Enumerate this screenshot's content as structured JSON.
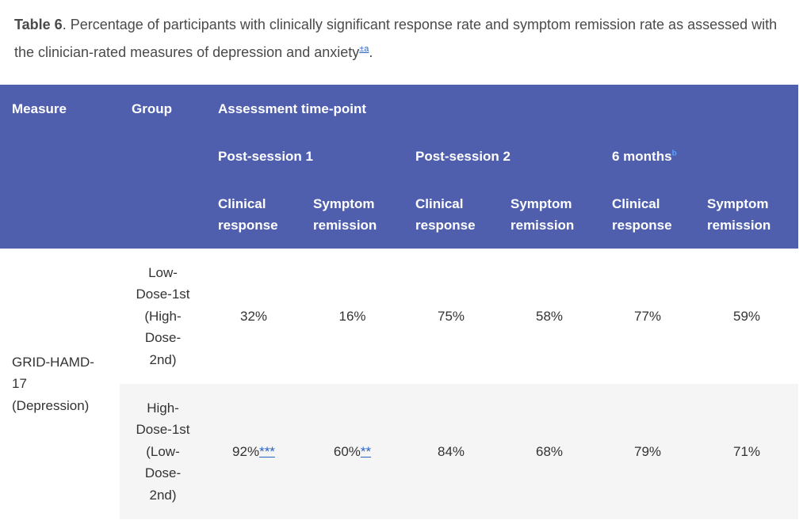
{
  "caption": {
    "label": "Table 6",
    "text": ". Percentage of participants with clinically significant response rate and symptom remission rate as assessed with the clinician-rated measures of depression and anxiety",
    "footnote_ref": "±a",
    "end": "."
  },
  "header": {
    "measure": "Measure",
    "group": "Group",
    "timepoint": "Assessment time-point",
    "post_session_1": "Post-session 1",
    "post_session_2": "Post-session 2",
    "months_6": "6 months",
    "months_6_ref": "b",
    "clinical_response_1": "Clinical",
    "clinical_response_2": "response",
    "symptom_remission_1": "Symptom",
    "symptom_remission_2": "remission"
  },
  "rows": [
    {
      "measure_lines": [
        "GRID-HAMD-",
        "17",
        "(Depression)"
      ],
      "group_lines": [
        "Low-",
        "Dose-1st",
        "(High-",
        "Dose-",
        "2nd)"
      ],
      "values": [
        {
          "value": "32%",
          "sig": ""
        },
        {
          "value": "16%",
          "sig": ""
        },
        {
          "value": "75%",
          "sig": ""
        },
        {
          "value": "58%",
          "sig": ""
        },
        {
          "value": "77%",
          "sig": ""
        },
        {
          "value": "59%",
          "sig": ""
        }
      ]
    },
    {
      "group_lines": [
        "High-",
        "Dose-1st",
        "(Low-",
        "Dose-",
        "2nd)"
      ],
      "values": [
        {
          "value": "92%",
          "sig": "***"
        },
        {
          "value": "60%",
          "sig": "**"
        },
        {
          "value": "84%",
          "sig": ""
        },
        {
          "value": "68%",
          "sig": ""
        },
        {
          "value": "79%",
          "sig": ""
        },
        {
          "value": "71%",
          "sig": ""
        }
      ]
    }
  ]
}
